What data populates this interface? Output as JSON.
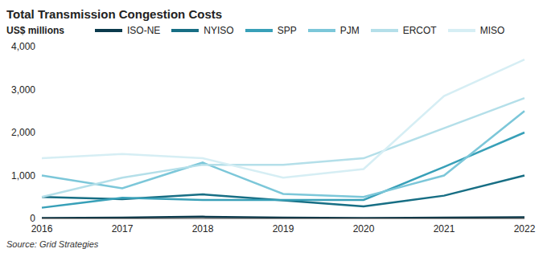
{
  "chart_data": {
    "type": "line",
    "title": "Total Transmission Congestion Costs",
    "y_label": "US$ millions",
    "source": "Source: Grid Strategies",
    "categories": [
      "2016",
      "2017",
      "2018",
      "2019",
      "2020",
      "2021",
      "2022"
    ],
    "series": [
      {
        "name": "ISO-NE",
        "color": "#0b3a4c",
        "values": [
          10,
          20,
          40,
          20,
          10,
          20,
          30
        ]
      },
      {
        "name": "NYISO",
        "color": "#176e84",
        "values": [
          500,
          450,
          560,
          420,
          280,
          530,
          1000
        ]
      },
      {
        "name": "SPP",
        "color": "#38a0b8",
        "values": [
          250,
          480,
          430,
          430,
          430,
          1200,
          2000
        ]
      },
      {
        "name": "PJM",
        "color": "#7cc7d9",
        "values": [
          1000,
          700,
          1300,
          570,
          500,
          1000,
          2500
        ]
      },
      {
        "name": "ERCOT",
        "color": "#b4dfe9",
        "values": [
          500,
          950,
          1250,
          1250,
          1400,
          2100,
          2800
        ]
      },
      {
        "name": "MISO",
        "color": "#d6eef4",
        "values": [
          1400,
          1500,
          1400,
          950,
          1150,
          2850,
          3700
        ]
      }
    ],
    "ylim": [
      0,
      4000
    ],
    "yticks": [
      0,
      {
        "value": 1000,
        "label": "1,000"
      },
      {
        "value": 2000,
        "label": "2,000"
      },
      {
        "value": 3000,
        "label": "3,000"
      },
      {
        "value": 4000,
        "label": "4,000"
      }
    ],
    "grid": false,
    "legend": "top"
  }
}
